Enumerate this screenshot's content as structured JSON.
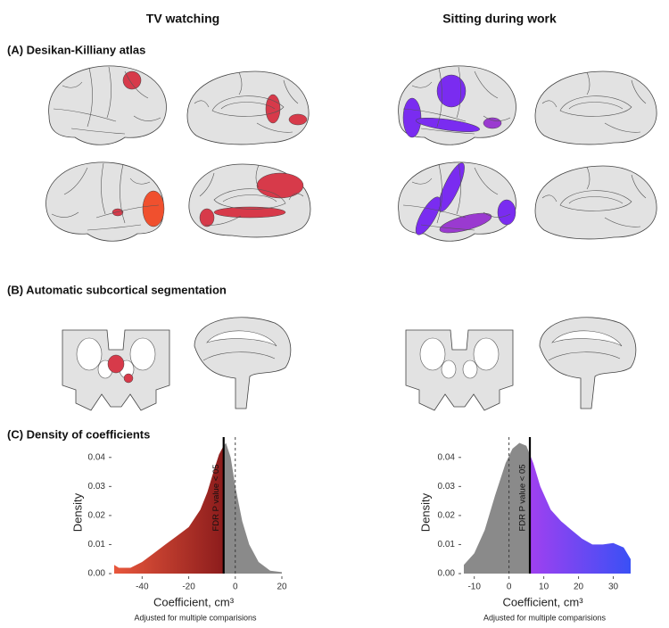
{
  "columns": [
    "TV watching",
    "Sitting during work"
  ],
  "sections": [
    "(A)  Desikan-Killiany atlas",
    "(B) Automatic subcortical segmentation",
    "(C) Density of coefficients"
  ],
  "chart_data": [
    {
      "type": "area",
      "xlabel": "Coefficient, cm³",
      "ylabel": "Density",
      "note": "Adjusted for multiple comparisions",
      "threshold_label": "FDR P value < 05",
      "x": [
        -52,
        -50,
        -45,
        -40,
        -35,
        -30,
        -25,
        -20,
        -15,
        -12,
        -9,
        -7,
        -5,
        -4,
        -2,
        0,
        3,
        6,
        10,
        15,
        20
      ],
      "values": [
        0.003,
        0.002,
        0.002,
        0.004,
        0.007,
        0.01,
        0.013,
        0.016,
        0.022,
        0.028,
        0.036,
        0.041,
        0.044,
        0.045,
        0.04,
        0.03,
        0.018,
        0.01,
        0.004,
        0.001,
        0.0005
      ],
      "threshold": -5,
      "reference": 0,
      "highlight_side": "left",
      "colors": [
        "#e8573c",
        "#8c1c1c"
      ],
      "gray": "#8a8a8a",
      "xlim": [
        -52,
        20
      ],
      "xticks": [
        -40,
        -20,
        0,
        20
      ],
      "ylim": [
        0,
        0.047
      ],
      "yticks": [
        {
          "value": 0,
          "label": "0.00"
        },
        0.01,
        0.02,
        0.03,
        0.04
      ]
    },
    {
      "type": "area",
      "xlabel": "Coefficient, cm³",
      "ylabel": "Density",
      "note": "Adjusted for multiple comparisions",
      "threshold_label": "FDR P value < 05",
      "x": [
        -13,
        -10,
        -7,
        -4,
        -1,
        1,
        3,
        5,
        7,
        9,
        12,
        15,
        18,
        21,
        24,
        27,
        30,
        33,
        35
      ],
      "values": [
        0.003,
        0.007,
        0.015,
        0.027,
        0.038,
        0.043,
        0.045,
        0.044,
        0.038,
        0.03,
        0.022,
        0.018,
        0.015,
        0.012,
        0.01,
        0.01,
        0.0105,
        0.009,
        0.005
      ],
      "threshold": 6,
      "reference": 0,
      "highlight_side": "right",
      "colors": [
        "#a040f0",
        "#3a50f5"
      ],
      "gray": "#8a8a8a",
      "xlim": [
        -13,
        35
      ],
      "xticks": [
        -10,
        0,
        10,
        20,
        30
      ],
      "ylim": [
        0,
        0.047
      ],
      "yticks": [
        {
          "value": 0,
          "label": "0.00"
        },
        0.01,
        0.02,
        0.03,
        0.04
      ]
    }
  ]
}
